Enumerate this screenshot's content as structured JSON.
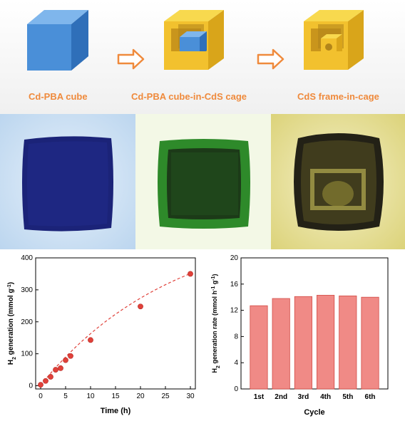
{
  "schematic": {
    "steps": [
      {
        "label": "Cd-PBA cube"
      },
      {
        "label": "Cd-PBA cube-in-CdS cage"
      },
      {
        "label": "CdS frame-in-cage"
      }
    ],
    "arrow_icon": "hollow-right-arrow",
    "colors": {
      "cube": "#4a8fd8",
      "cage": "#f2c12e",
      "label": "#ef8a3c"
    }
  },
  "micrographs": {
    "panels": [
      {
        "id": "cube",
        "background": "#cfe3f5",
        "particle": "#1b2378"
      },
      {
        "id": "cube-in-cage",
        "background": "#f3f8e6",
        "particle": "#1f4a1c"
      },
      {
        "id": "frame-in-cage",
        "background": "#ece7a8",
        "particle": "#232116"
      }
    ]
  },
  "chart_data": [
    {
      "type": "scatter",
      "x": [
        0,
        1,
        2,
        3,
        4,
        5,
        6,
        10,
        20,
        30
      ],
      "y": [
        3,
        15,
        28,
        50,
        55,
        80,
        93,
        143,
        248,
        350
      ],
      "fit": "dashed curve",
      "xlabel": "Time (h)",
      "ylabel": "H2 generation (mmol g-1)",
      "ylabel_main": "H",
      "ylabel_sub": "2",
      "ylabel_rest": " generation (mmol g",
      "ylabel_sup": "-1",
      "ylabel_end": ")",
      "xlim": [
        -1,
        31
      ],
      "ylim": [
        -10,
        400
      ],
      "xticks": [
        "0",
        "5",
        "10",
        "15",
        "20",
        "25",
        "30"
      ],
      "yticks": [
        "0",
        "100",
        "200",
        "300",
        "400"
      ],
      "color": "#e0413a"
    },
    {
      "type": "bar",
      "categories": [
        "1st",
        "2nd",
        "3rd",
        "4th",
        "5th",
        "6th"
      ],
      "values": [
        12.7,
        13.8,
        14.1,
        14.3,
        14.2,
        14.0
      ],
      "xlabel": "Cycle",
      "ylabel": "H2 generation rate (mmol h-1 g-1)",
      "ylabel_main": "H",
      "ylabel_sub": "2",
      "ylabel_rest": " generation rate (mmol h",
      "ylabel_sup1": "-1",
      "ylabel_mid": " g",
      "ylabel_sup2": "-1",
      "ylabel_end": ")",
      "ylim": [
        0,
        20
      ],
      "yticks": [
        "0",
        "4",
        "8",
        "12",
        "16",
        "20"
      ],
      "color": "#f08a86",
      "edge": "#d24b45"
    }
  ]
}
